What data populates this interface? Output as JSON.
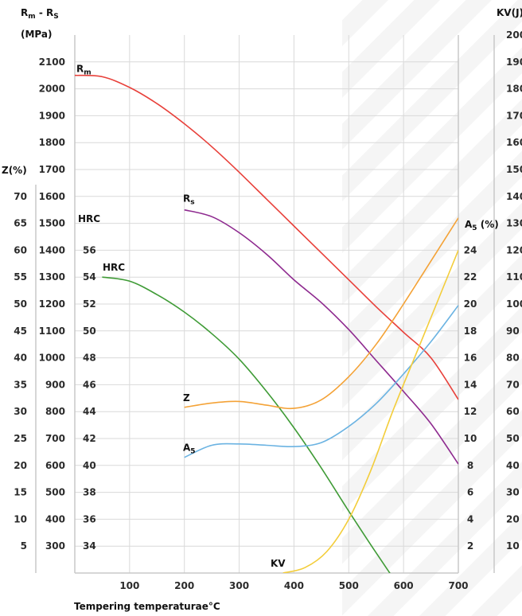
{
  "chart_data": {
    "type": "line",
    "x": [
      100,
      200,
      300,
      400,
      500,
      600,
      700
    ],
    "x_ticks": [
      "100",
      "200",
      "300",
      "400",
      "500",
      "600",
      "700"
    ],
    "xlabel": "Tempering temperaturae°C",
    "xlim": [
      0,
      700
    ],
    "axes": {
      "strength": {
        "title_main": "R",
        "title_sub1": "m",
        "title_mid": " - R",
        "title_sub2": "S",
        "unit": "(MPa)",
        "range": [
          200,
          2200
        ],
        "ticks": [
          "300",
          "400",
          "500",
          "600",
          "700",
          "800",
          "900",
          "1000",
          "1100",
          "1200",
          "1300",
          "1400",
          "1500",
          "1600",
          "1700",
          "1800",
          "1900",
          "2000",
          "2100"
        ]
      },
      "z": {
        "title": "Z(%)",
        "ticks": [
          "5",
          "10",
          "15",
          "20",
          "25",
          "30",
          "35",
          "40",
          "45",
          "50",
          "55",
          "60",
          "65",
          "70"
        ]
      },
      "hrc": {
        "title": "HRC",
        "ticks": [
          "34",
          "36",
          "38",
          "40",
          "42",
          "44",
          "46",
          "48",
          "50",
          "52",
          "54",
          "56"
        ]
      },
      "a5": {
        "title_main": "A",
        "title_sub": "5",
        "title_suffix": " (%)",
        "ticks": [
          "2",
          "4",
          "6",
          "8",
          "10",
          "12",
          "14",
          "16",
          "18",
          "20",
          "22",
          "24"
        ]
      },
      "kv": {
        "title": "KV(J)",
        "ticks": [
          "10",
          "20",
          "30",
          "40",
          "50",
          "60",
          "70",
          "80",
          "90",
          "100",
          "110",
          "120",
          "130",
          "140",
          "150",
          "160",
          "170",
          "180",
          "190",
          "200"
        ]
      }
    },
    "series": [
      {
        "name": "Rm",
        "label_main": "R",
        "label_sub": "m",
        "axis": "strength",
        "color": "#e8403a",
        "x": [
          0,
          50,
          100,
          150,
          200,
          250,
          300,
          350,
          400,
          450,
          500,
          550,
          600,
          650,
          700
        ],
        "values": [
          2050,
          2045,
          2005,
          1945,
          1870,
          1785,
          1690,
          1590,
          1490,
          1390,
          1290,
          1190,
          1095,
          1000,
          845
        ]
      },
      {
        "name": "Rs",
        "label_main": "R",
        "label_sub": "s",
        "axis": "strength",
        "color": "#8e2a8f",
        "x": [
          200,
          250,
          300,
          350,
          400,
          450,
          500,
          550,
          600,
          650,
          700
        ],
        "values": [
          1550,
          1525,
          1465,
          1385,
          1290,
          1205,
          1105,
          990,
          875,
          755,
          605
        ]
      },
      {
        "name": "HRC",
        "label_main": "HRC",
        "axis": "hrc",
        "color": "#3f9b36",
        "x": [
          50,
          100,
          150,
          200,
          250,
          300,
          350,
          400,
          450,
          500,
          550,
          600
        ],
        "values": [
          54,
          53.7,
          52.7,
          51.4,
          49.8,
          47.9,
          45.5,
          42.8,
          39.8,
          36.6,
          33.5,
          30.5
        ]
      },
      {
        "name": "Z",
        "label_main": "Z",
        "axis": "z",
        "color": "#f4a236",
        "x": [
          200,
          250,
          300,
          350,
          400,
          450,
          500,
          550,
          600,
          650,
          700
        ],
        "values": [
          30.8,
          31.6,
          31.9,
          31.2,
          30.6,
          32.2,
          36.5,
          42.5,
          50,
          58,
          66
        ]
      },
      {
        "name": "A5",
        "label_main": "A",
        "label_sub": "5",
        "axis": "a5",
        "color": "#6bb3e2",
        "x": [
          200,
          250,
          300,
          350,
          400,
          450,
          500,
          550,
          600,
          650,
          700
        ],
        "values": [
          8.6,
          9.5,
          9.6,
          9.5,
          9.4,
          9.7,
          10.9,
          12.6,
          14.8,
          17.2,
          19.9
        ]
      },
      {
        "name": "KV",
        "label_main": "KV",
        "axis": "kv",
        "color": "#f3cd3a",
        "x": [
          380,
          420,
          460,
          500,
          540,
          580,
          620,
          660,
          700
        ],
        "values": [
          0,
          2,
          8,
          20,
          38,
          60,
          80,
          100,
          120
        ]
      }
    ]
  }
}
